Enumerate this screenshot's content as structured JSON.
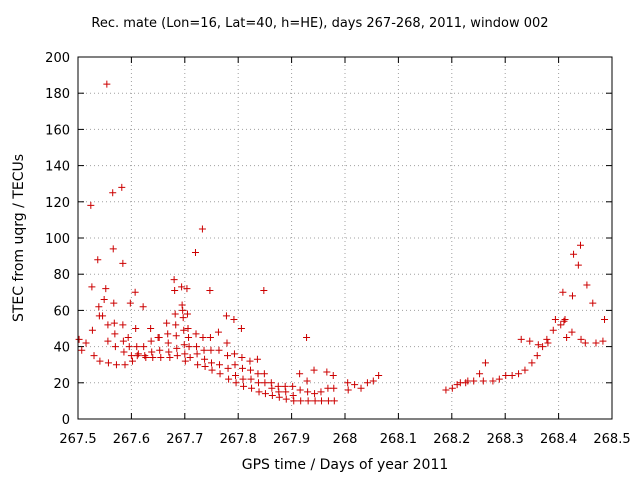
{
  "chart_data": {
    "type": "scatter",
    "title": "Rec. mate (Lon=16, Lat=40, h=HE), days 267-268, 2011, window 002",
    "xlabel": "GPS time / Days of year 2011",
    "ylabel": "STEC from uqrg / TECUs",
    "xlim": [
      267.5,
      268.5
    ],
    "ylim": [
      0,
      200
    ],
    "xticks": [
      267.5,
      267.6,
      267.7,
      267.8,
      267.9,
      268.0,
      268.1,
      268.2,
      268.3,
      268.4,
      268.5
    ],
    "xtick_labels": [
      "267.5",
      "267.6",
      "267.7",
      "267.8",
      "267.9",
      "268",
      "268.1",
      "268.2",
      "268.3",
      "268.4",
      "268.5"
    ],
    "yticks": [
      0,
      20,
      40,
      60,
      80,
      100,
      120,
      140,
      160,
      180,
      200
    ],
    "ytick_labels": [
      "0",
      "20",
      "40",
      "60",
      "80",
      "100",
      "120",
      "140",
      "160",
      "180",
      "200"
    ],
    "grid": true,
    "marker": "plus",
    "color": "#cc0000",
    "series": [
      {
        "name": "",
        "points": [
          [
            267.502,
            44
          ],
          [
            267.507,
            38
          ],
          [
            267.515,
            42
          ],
          [
            267.524,
            118
          ],
          [
            267.526,
            73
          ],
          [
            267.527,
            49
          ],
          [
            267.53,
            35
          ],
          [
            267.537,
            88
          ],
          [
            267.539,
            62
          ],
          [
            267.54,
            57
          ],
          [
            267.541,
            32
          ],
          [
            267.546,
            57
          ],
          [
            267.549,
            66
          ],
          [
            267.552,
            72
          ],
          [
            267.554,
            185
          ],
          [
            267.556,
            52
          ],
          [
            267.556,
            43
          ],
          [
            267.557,
            31
          ],
          [
            267.565,
            125
          ],
          [
            267.566,
            94
          ],
          [
            267.567,
            64
          ],
          [
            267.568,
            53
          ],
          [
            267.569,
            47
          ],
          [
            267.57,
            40
          ],
          [
            267.572,
            30
          ],
          [
            267.582,
            128
          ],
          [
            267.584,
            86
          ],
          [
            267.584,
            52
          ],
          [
            267.585,
            43
          ],
          [
            267.586,
            37
          ],
          [
            267.588,
            30
          ],
          [
            267.594,
            45
          ],
          [
            267.596,
            40
          ],
          [
            267.598,
            64
          ],
          [
            267.6,
            35
          ],
          [
            267.602,
            32
          ],
          [
            267.607,
            70
          ],
          [
            267.608,
            50
          ],
          [
            267.61,
            40
          ],
          [
            267.611,
            35
          ],
          [
            267.613,
            36
          ],
          [
            267.622,
            62
          ],
          [
            267.623,
            40
          ],
          [
            267.625,
            35
          ],
          [
            267.627,
            34
          ],
          [
            267.636,
            50
          ],
          [
            267.637,
            43
          ],
          [
            267.638,
            37
          ],
          [
            267.64,
            34
          ],
          [
            267.65,
            45
          ],
          [
            267.652,
            45
          ],
          [
            267.653,
            38
          ],
          [
            267.655,
            34
          ],
          [
            267.666,
            53
          ],
          [
            267.668,
            47
          ],
          [
            267.669,
            42
          ],
          [
            267.67,
            37
          ],
          [
            267.672,
            34
          ],
          [
            267.68,
            77
          ],
          [
            267.681,
            71
          ],
          [
            267.682,
            58
          ],
          [
            267.683,
            52
          ],
          [
            267.684,
            46
          ],
          [
            267.685,
            39
          ],
          [
            267.686,
            35
          ],
          [
            267.694,
            73
          ],
          [
            267.695,
            63
          ],
          [
            267.696,
            60
          ],
          [
            267.697,
            56
          ],
          [
            267.698,
            49
          ],
          [
            267.699,
            41
          ],
          [
            267.7,
            36
          ],
          [
            267.701,
            32
          ],
          [
            267.704,
            72
          ],
          [
            267.705,
            58
          ],
          [
            267.706,
            50
          ],
          [
            267.707,
            45
          ],
          [
            267.708,
            40
          ],
          [
            267.71,
            34
          ],
          [
            267.72,
            92
          ],
          [
            267.721,
            47
          ],
          [
            267.722,
            40
          ],
          [
            267.723,
            36
          ],
          [
            267.724,
            30
          ],
          [
            267.733,
            105
          ],
          [
            267.734,
            45
          ],
          [
            267.736,
            38
          ],
          [
            267.737,
            33
          ],
          [
            267.738,
            29
          ],
          [
            267.747,
            71
          ],
          [
            267.748,
            45
          ],
          [
            267.749,
            38
          ],
          [
            267.75,
            31
          ],
          [
            267.751,
            27
          ],
          [
            267.763,
            48
          ],
          [
            267.764,
            38
          ],
          [
            267.765,
            30
          ],
          [
            267.766,
            25
          ],
          [
            267.778,
            57
          ],
          [
            267.779,
            42
          ],
          [
            267.78,
            35
          ],
          [
            267.781,
            28
          ],
          [
            267.782,
            22
          ],
          [
            267.792,
            55
          ],
          [
            267.793,
            36
          ],
          [
            267.794,
            30
          ],
          [
            267.795,
            24
          ],
          [
            267.796,
            20
          ],
          [
            267.806,
            50
          ],
          [
            267.807,
            34
          ],
          [
            267.808,
            28
          ],
          [
            267.809,
            22
          ],
          [
            267.81,
            18
          ],
          [
            267.822,
            32
          ],
          [
            267.823,
            27
          ],
          [
            267.824,
            22
          ],
          [
            267.825,
            17
          ],
          [
            267.836,
            33
          ],
          [
            267.837,
            25
          ],
          [
            267.838,
            20
          ],
          [
            267.839,
            15
          ],
          [
            267.848,
            71
          ],
          [
            267.849,
            25
          ],
          [
            267.85,
            20
          ],
          [
            267.851,
            14
          ],
          [
            267.862,
            20
          ],
          [
            267.863,
            17
          ],
          [
            267.864,
            13
          ],
          [
            267.875,
            18
          ],
          [
            267.876,
            15
          ],
          [
            267.877,
            12
          ],
          [
            267.888,
            18
          ],
          [
            267.889,
            15
          ],
          [
            267.89,
            11
          ],
          [
            267.902,
            18
          ],
          [
            267.903,
            13
          ],
          [
            267.904,
            10
          ],
          [
            267.915,
            25
          ],
          [
            267.916,
            16
          ],
          [
            267.917,
            10
          ],
          [
            267.928,
            45
          ],
          [
            267.929,
            21
          ],
          [
            267.93,
            15
          ],
          [
            267.931,
            10
          ],
          [
            267.942,
            27
          ],
          [
            267.943,
            14
          ],
          [
            267.944,
            10
          ],
          [
            267.955,
            15
          ],
          [
            267.956,
            10
          ],
          [
            267.966,
            26
          ],
          [
            267.968,
            17
          ],
          [
            267.969,
            10
          ],
          [
            267.978,
            24
          ],
          [
            267.979,
            17
          ],
          [
            267.98,
            10
          ],
          [
            268.005,
            20
          ],
          [
            268.006,
            16
          ],
          [
            268.018,
            19
          ],
          [
            268.03,
            17
          ],
          [
            268.042,
            20
          ],
          [
            268.053,
            21
          ],
          [
            268.063,
            24
          ],
          [
            268.189,
            16
          ],
          [
            268.201,
            17
          ],
          [
            268.21,
            19
          ],
          [
            268.216,
            20
          ],
          [
            268.226,
            20
          ],
          [
            268.23,
            21
          ],
          [
            268.241,
            21
          ],
          [
            268.252,
            25
          ],
          [
            268.259,
            21
          ],
          [
            268.263,
            31
          ],
          [
            268.277,
            21
          ],
          [
            268.289,
            22
          ],
          [
            268.301,
            24
          ],
          [
            268.313,
            24
          ],
          [
            268.325,
            25
          ],
          [
            268.33,
            44
          ],
          [
            268.337,
            27
          ],
          [
            268.346,
            43
          ],
          [
            268.35,
            31
          ],
          [
            268.36,
            35
          ],
          [
            268.362,
            41
          ],
          [
            268.37,
            40
          ],
          [
            268.378,
            44
          ],
          [
            268.38,
            42
          ],
          [
            268.39,
            49
          ],
          [
            268.394,
            55
          ],
          [
            268.404,
            52
          ],
          [
            268.408,
            70
          ],
          [
            268.41,
            54
          ],
          [
            268.412,
            55
          ],
          [
            268.415,
            45
          ],
          [
            268.425,
            48
          ],
          [
            268.426,
            68
          ],
          [
            268.428,
            91
          ],
          [
            268.437,
            85
          ],
          [
            268.441,
            96
          ],
          [
            268.442,
            44
          ],
          [
            268.45,
            42
          ],
          [
            268.453,
            74
          ],
          [
            268.464,
            64
          ],
          [
            268.47,
            42
          ],
          [
            268.483,
            43
          ],
          [
            268.486,
            55
          ]
        ]
      }
    ]
  }
}
